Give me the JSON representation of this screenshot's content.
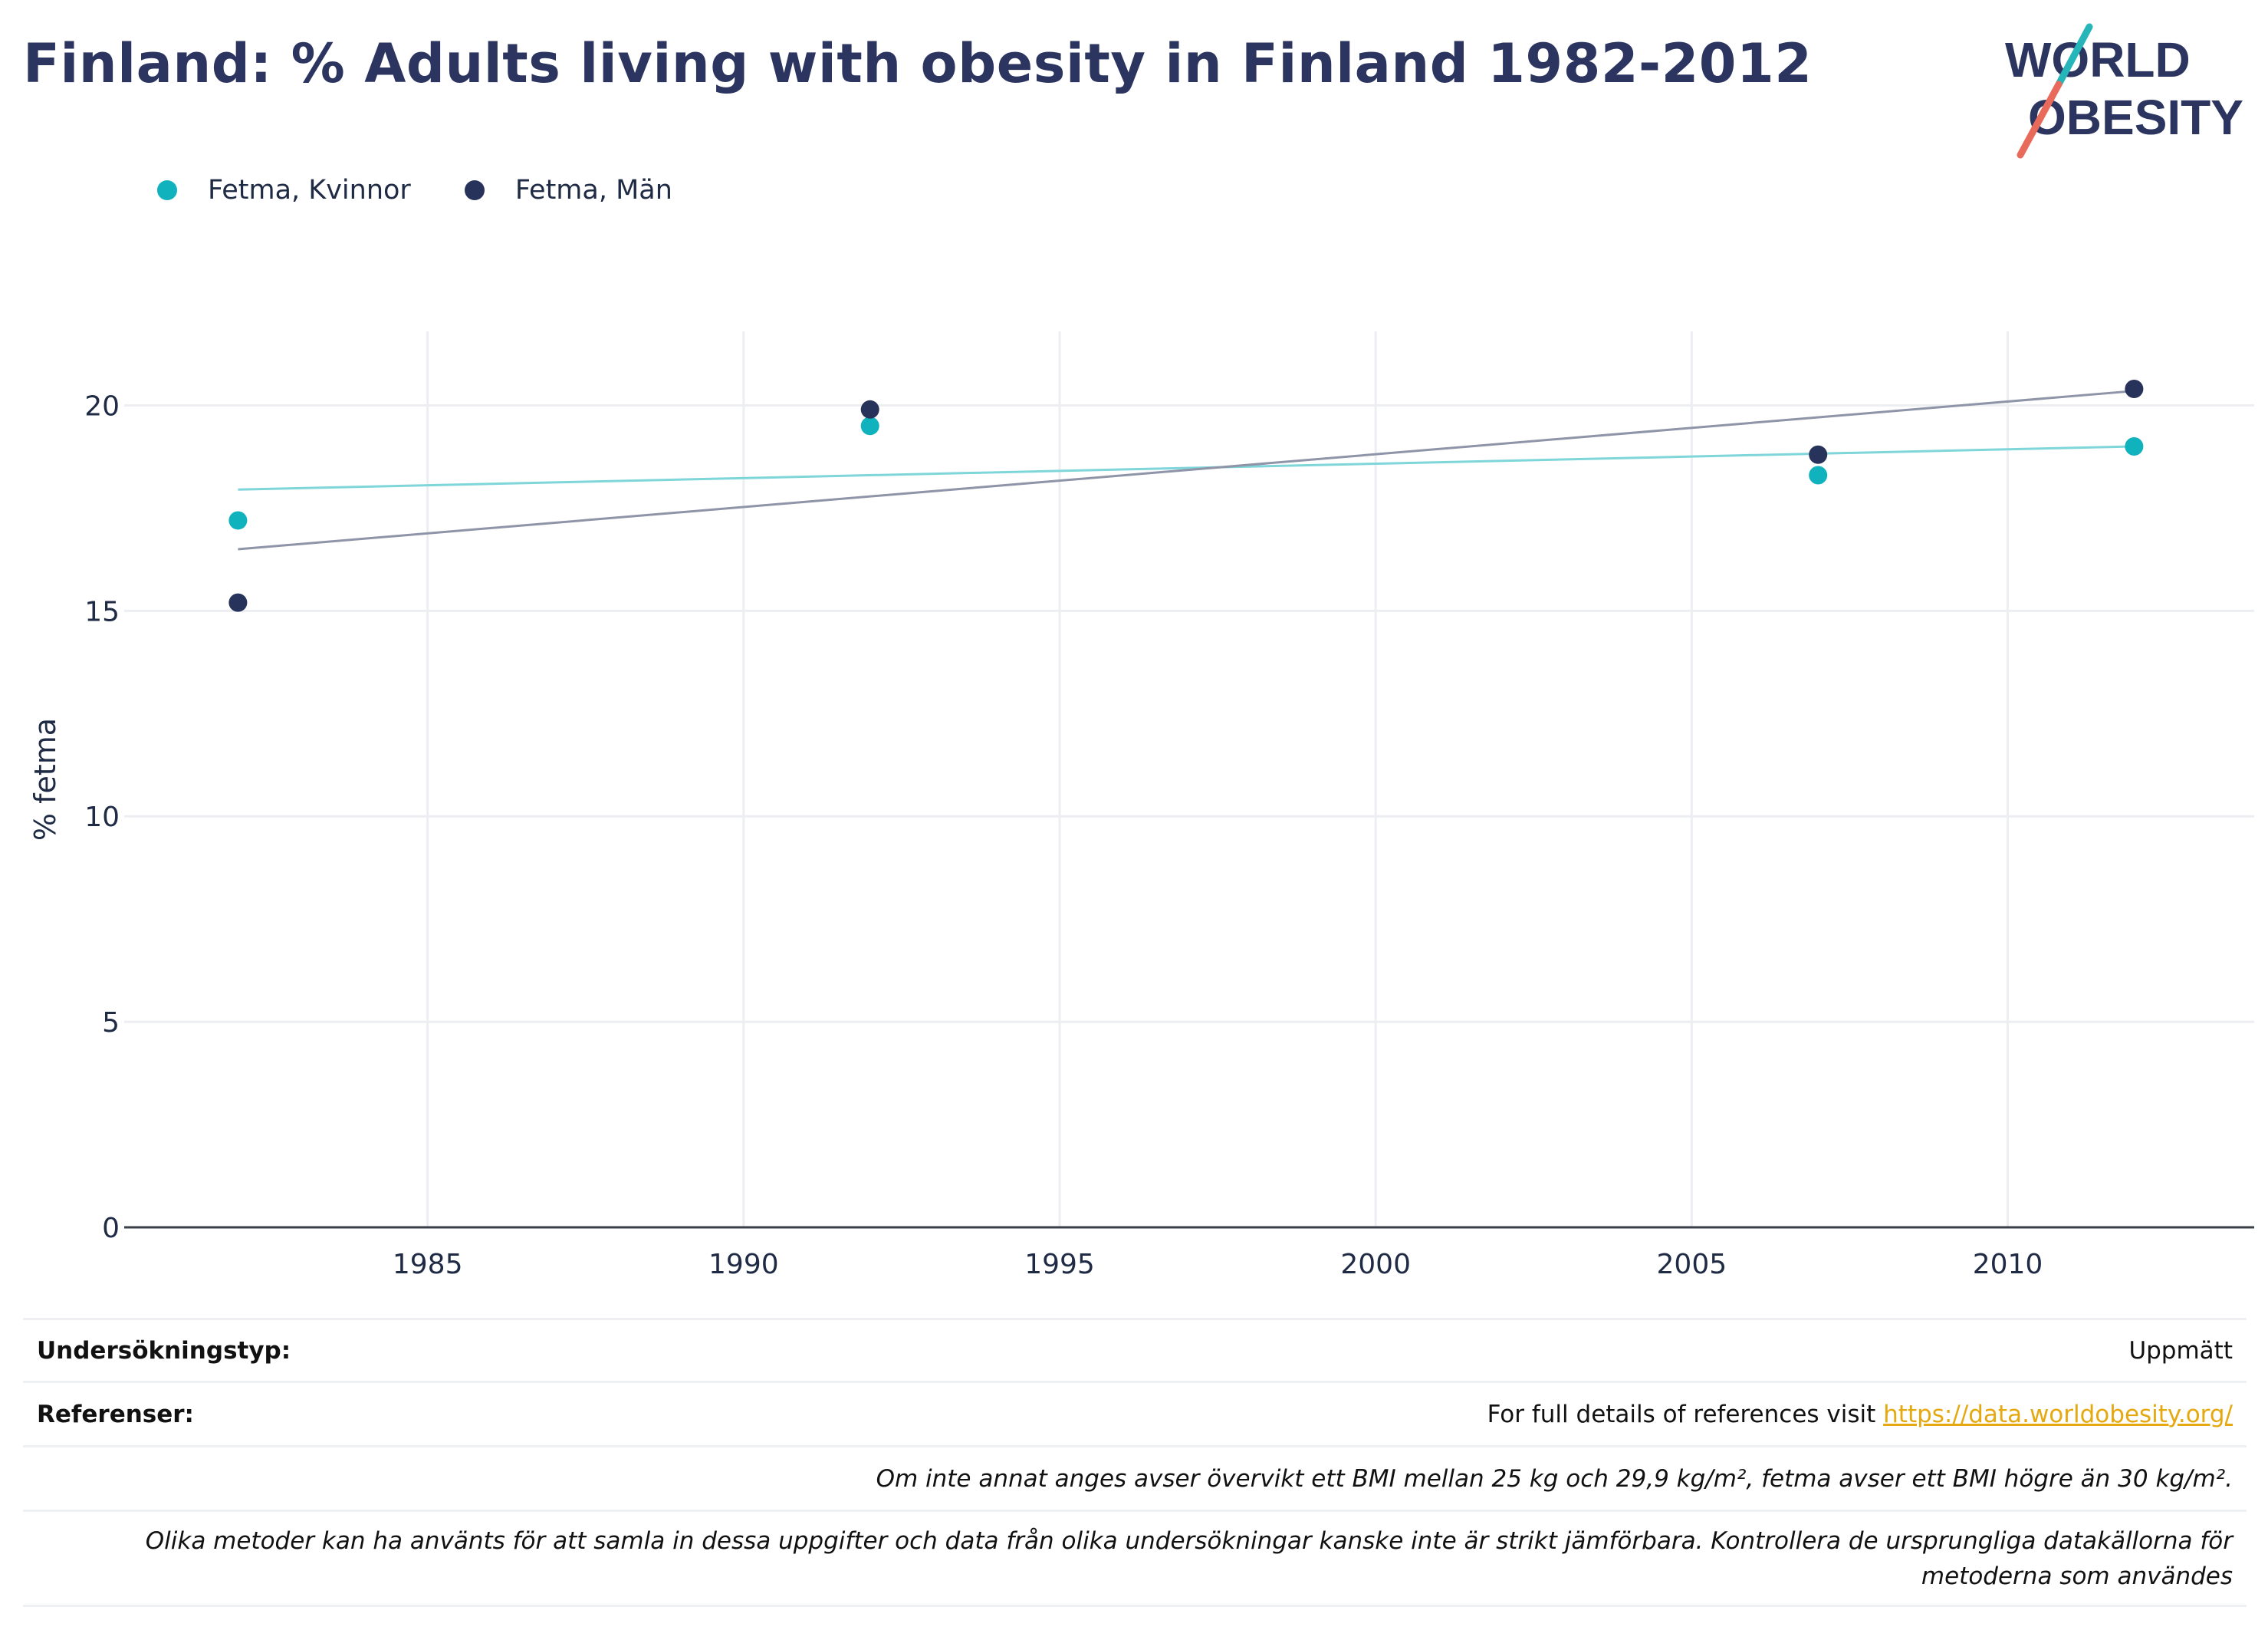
{
  "title": "Finland: % Adults living with obesity in Finland 1982-2012",
  "logo": {
    "line1": "WORLD",
    "line2": "OBESITY",
    "colors": {
      "text": "#2b3560",
      "slash_top": "#26b5b8",
      "slash_bottom": "#e86a5a"
    }
  },
  "legend": [
    {
      "name": "Fetma, Kvinnor",
      "color": "#0fb2bd"
    },
    {
      "name": "Fetma, Män",
      "color": "#27335a"
    }
  ],
  "chart_data": {
    "type": "scatter",
    "title": "Finland: % Adults living with obesity in Finland 1982-2012",
    "xlabel": "",
    "ylabel": "% fetma",
    "xlim": [
      1980.2,
      2013.9
    ],
    "ylim": [
      0,
      21.8
    ],
    "xticks": [
      1985,
      1990,
      1995,
      2000,
      2005,
      2010
    ],
    "yticks": [
      0,
      5,
      10,
      15,
      20
    ],
    "grid": true,
    "legend_position": "top-left",
    "series": [
      {
        "name": "Fetma, Kvinnor",
        "color": "#0fb2bd",
        "trend_color": "#7fd6da",
        "x": [
          1982,
          1992,
          2007,
          2012
        ],
        "y": [
          17.2,
          19.5,
          18.3,
          19.0
        ],
        "trend": {
          "x": [
            1982,
            2012
          ],
          "y": [
            17.95,
            19.0
          ]
        }
      },
      {
        "name": "Fetma, Män",
        "color": "#27335a",
        "trend_color": "#8f95a8",
        "x": [
          1982,
          1992,
          2007,
          2012
        ],
        "y": [
          15.2,
          19.9,
          18.8,
          20.4
        ],
        "trend": {
          "x": [
            1982,
            2012
          ],
          "y": [
            16.5,
            20.35
          ]
        }
      }
    ]
  },
  "meta": {
    "survey_label": "Undersökningstyp:",
    "survey_value": "Uppmätt",
    "refs_label": "Referenser:",
    "refs_text": "For full details of references visit ",
    "refs_link": "https://data.worldobesity.org/",
    "note1": "Om inte annat anges avser övervikt ett BMI mellan 25 kg och 29,9 kg/m², fetma avser ett BMI högre än 30 kg/m².",
    "note2": "Olika metoder kan ha använts för att samla in dessa uppgifter och data från olika undersökningar kanske inte är strikt jämförbara. Kontrollera de ursprungliga datakällorna för metoderna som användes"
  }
}
